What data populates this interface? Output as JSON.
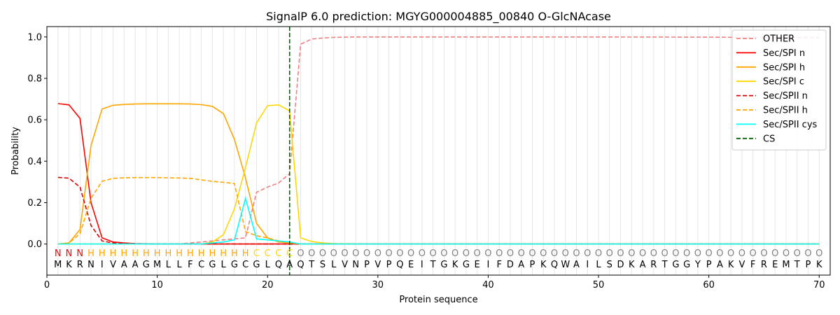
{
  "chart_data": {
    "type": "line",
    "title": "SignalP 6.0 prediction: MGYG000004885_00840 O-GlcNAcase",
    "xlabel": "Protein sequence",
    "ylabel": "Probability",
    "xlim": [
      0,
      71
    ],
    "ylim": [
      -0.15,
      1.05
    ],
    "xticks": [
      0,
      10,
      20,
      30,
      40,
      50,
      60,
      70
    ],
    "yticks": [
      0.0,
      0.2,
      0.4,
      0.6,
      0.8,
      1.0
    ],
    "legend_position": "top-right",
    "grid": "vertical lines at each residue",
    "cleavage_site": 22,
    "sequence": [
      "M",
      "K",
      "R",
      "N",
      "I",
      "V",
      "A",
      "A",
      "G",
      "M",
      "L",
      "L",
      "F",
      "C",
      "G",
      "L",
      "G",
      "C",
      "G",
      "L",
      "Q",
      "A",
      "Q",
      "T",
      "S",
      "L",
      "V",
      "N",
      "P",
      "V",
      "P",
      "Q",
      "E",
      "I",
      "T",
      "G",
      "K",
      "G",
      "E",
      "I",
      "F",
      "D",
      "A",
      "P",
      "K",
      "Q",
      "W",
      "A",
      "I",
      "L",
      "S",
      "D",
      "K",
      "A",
      "R",
      "T",
      "G",
      "G",
      "Y",
      "P",
      "A",
      "K",
      "V",
      "F",
      "R",
      "E",
      "M",
      "T",
      "P",
      "K"
    ],
    "labels": [
      "N",
      "N",
      "N",
      "H",
      "H",
      "H",
      "H",
      "H",
      "H",
      "H",
      "H",
      "H",
      "H",
      "H",
      "H",
      "H",
      "H",
      "H",
      "C",
      "C",
      "C",
      "C",
      "O",
      "O",
      "O",
      "O",
      "O",
      "O",
      "O",
      "O",
      "O",
      "O",
      "O",
      "O",
      "O",
      "O",
      "O",
      "O",
      "O",
      "O",
      "O",
      "O",
      "O",
      "O",
      "O",
      "O",
      "O",
      "O",
      "O",
      "O",
      "O",
      "O",
      "O",
      "O",
      "O",
      "O",
      "O",
      "O",
      "O",
      "O",
      "O",
      "O",
      "O",
      "O",
      "O",
      "O",
      "O",
      "O",
      "O",
      "O"
    ],
    "label_colors": {
      "N": "#ff0000",
      "H": "#ffa500",
      "C": "#ffd700",
      "O": "#808080"
    },
    "series": [
      {
        "name": "OTHER",
        "color": "#f08080",
        "dash": "dashed",
        "points": [
          [
            1,
            0.0
          ],
          [
            2,
            0.0
          ],
          [
            3,
            0.0
          ],
          [
            4,
            0.0
          ],
          [
            5,
            0.0
          ],
          [
            6,
            0.0
          ],
          [
            7,
            0.0
          ],
          [
            8,
            0.0
          ],
          [
            9,
            0.0
          ],
          [
            10,
            0.0
          ],
          [
            11,
            0.0
          ],
          [
            12,
            0.0
          ],
          [
            13,
            0.005
          ],
          [
            14,
            0.01
          ],
          [
            15,
            0.015
          ],
          [
            16,
            0.02
          ],
          [
            17,
            0.025
          ],
          [
            18,
            0.03
          ],
          [
            19,
            0.25
          ],
          [
            20,
            0.275
          ],
          [
            21,
            0.295
          ],
          [
            22,
            0.34
          ],
          [
            23,
            0.965
          ],
          [
            24,
            0.99
          ],
          [
            25,
            0.995
          ],
          [
            26,
            0.998
          ],
          [
            27,
            0.999
          ],
          [
            28,
            1.0
          ],
          [
            30,
            1.0
          ],
          [
            40,
            1.0
          ],
          [
            50,
            1.0
          ],
          [
            60,
            0.999
          ],
          [
            63,
            0.998
          ],
          [
            65,
            0.997
          ],
          [
            70,
            0.997
          ]
        ]
      },
      {
        "name": "Sec/SPI n",
        "color": "#ff0000",
        "dash": "solid",
        "points": [
          [
            1,
            0.678
          ],
          [
            2,
            0.672
          ],
          [
            3,
            0.607
          ],
          [
            4,
            0.2
          ],
          [
            5,
            0.03
          ],
          [
            6,
            0.01
          ],
          [
            7,
            0.005
          ],
          [
            8,
            0.002
          ],
          [
            10,
            0.0
          ],
          [
            20,
            0.0
          ],
          [
            30,
            0.0
          ],
          [
            70,
            0.0
          ]
        ]
      },
      {
        "name": "Sec/SPI h",
        "color": "#ffa500",
        "dash": "solid",
        "points": [
          [
            1,
            0.0
          ],
          [
            2,
            0.005
          ],
          [
            3,
            0.07
          ],
          [
            4,
            0.475
          ],
          [
            5,
            0.652
          ],
          [
            6,
            0.67
          ],
          [
            7,
            0.674
          ],
          [
            8,
            0.676
          ],
          [
            9,
            0.677
          ],
          [
            10,
            0.677
          ],
          [
            11,
            0.677
          ],
          [
            12,
            0.677
          ],
          [
            13,
            0.676
          ],
          [
            14,
            0.673
          ],
          [
            15,
            0.665
          ],
          [
            16,
            0.63
          ],
          [
            17,
            0.505
          ],
          [
            18,
            0.32
          ],
          [
            19,
            0.1
          ],
          [
            20,
            0.03
          ],
          [
            21,
            0.01
          ],
          [
            22,
            0.005
          ],
          [
            23,
            0.0
          ],
          [
            30,
            0.0
          ],
          [
            70,
            0.0
          ]
        ]
      },
      {
        "name": "Sec/SPI c",
        "color": "#ffd700",
        "dash": "solid",
        "points": [
          [
            1,
            0.0
          ],
          [
            14,
            0.0
          ],
          [
            15,
            0.01
          ],
          [
            16,
            0.045
          ],
          [
            17,
            0.17
          ],
          [
            18,
            0.37
          ],
          [
            19,
            0.585
          ],
          [
            20,
            0.668
          ],
          [
            21,
            0.672
          ],
          [
            22,
            0.643
          ],
          [
            23,
            0.03
          ],
          [
            24,
            0.012
          ],
          [
            25,
            0.005
          ],
          [
            26,
            0.002
          ],
          [
            30,
            0.0
          ],
          [
            70,
            0.0
          ]
        ]
      },
      {
        "name": "Sec/SPII n",
        "color": "#dd0000",
        "dash": "dashed",
        "points": [
          [
            1,
            0.322
          ],
          [
            2,
            0.318
          ],
          [
            3,
            0.275
          ],
          [
            4,
            0.09
          ],
          [
            5,
            0.015
          ],
          [
            6,
            0.005
          ],
          [
            7,
            0.002
          ],
          [
            10,
            0.0
          ],
          [
            20,
            0.0
          ],
          [
            70,
            0.0
          ]
        ]
      },
      {
        "name": "Sec/SPII h",
        "color": "#ffa500",
        "dash": "dashed",
        "points": [
          [
            1,
            0.0
          ],
          [
            2,
            0.005
          ],
          [
            3,
            0.05
          ],
          [
            4,
            0.22
          ],
          [
            5,
            0.303
          ],
          [
            6,
            0.317
          ],
          [
            7,
            0.32
          ],
          [
            8,
            0.321
          ],
          [
            9,
            0.321
          ],
          [
            10,
            0.321
          ],
          [
            11,
            0.32
          ],
          [
            12,
            0.319
          ],
          [
            13,
            0.317
          ],
          [
            14,
            0.31
          ],
          [
            15,
            0.303
          ],
          [
            16,
            0.298
          ],
          [
            17,
            0.292
          ],
          [
            18,
            0.06
          ],
          [
            19,
            0.04
          ],
          [
            20,
            0.03
          ],
          [
            21,
            0.015
          ],
          [
            22,
            0.005
          ],
          [
            23,
            0.0
          ],
          [
            70,
            0.0
          ]
        ]
      },
      {
        "name": "Sec/SPII cys",
        "color": "#00ffff",
        "dash": "solid",
        "points": [
          [
            1,
            0.0
          ],
          [
            14,
            0.0
          ],
          [
            15,
            0.005
          ],
          [
            16,
            0.01
          ],
          [
            17,
            0.02
          ],
          [
            18,
            0.22
          ],
          [
            19,
            0.025
          ],
          [
            20,
            0.02
          ],
          [
            21,
            0.015
          ],
          [
            22,
            0.01
          ],
          [
            23,
            0.0
          ],
          [
            70,
            0.0
          ]
        ]
      }
    ],
    "cs_legend": {
      "name": "CS",
      "color": "#006400",
      "dash": "dashed"
    }
  }
}
